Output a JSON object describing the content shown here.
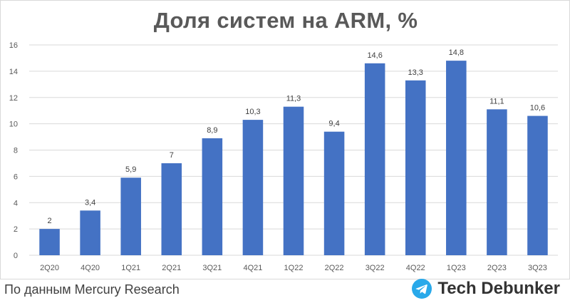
{
  "colors": {
    "bar": "#4472c4",
    "grid": "#d9d9d9",
    "telegram": "#29a9ea"
  },
  "chart_data": {
    "type": "bar",
    "title": "Доля систем на ARM, %",
    "categories": [
      "2Q20",
      "4Q20",
      "1Q21",
      "2Q21",
      "3Q21",
      "4Q21",
      "1Q22",
      "2Q22",
      "3Q22",
      "4Q22",
      "1Q23",
      "2Q23",
      "3Q23"
    ],
    "values": [
      2,
      3.4,
      5.9,
      7,
      8.9,
      10.3,
      11.3,
      9.4,
      14.6,
      13.3,
      14.8,
      11.1,
      10.6
    ],
    "data_labels": [
      "2",
      "3,4",
      "5,9",
      "7",
      "8,9",
      "10,3",
      "11,3",
      "9,4",
      "14,6",
      "13,3",
      "14,8",
      "11,1",
      "10,6"
    ],
    "ylim": [
      0,
      16
    ],
    "yticks": [
      0,
      2,
      4,
      6,
      8,
      10,
      12,
      14,
      16
    ],
    "grid": true,
    "xlabel": "",
    "ylabel": ""
  },
  "footer": {
    "source": "По данным Mercury Research",
    "brand": "Tech Debunker",
    "brand_icon": "telegram-icon"
  }
}
